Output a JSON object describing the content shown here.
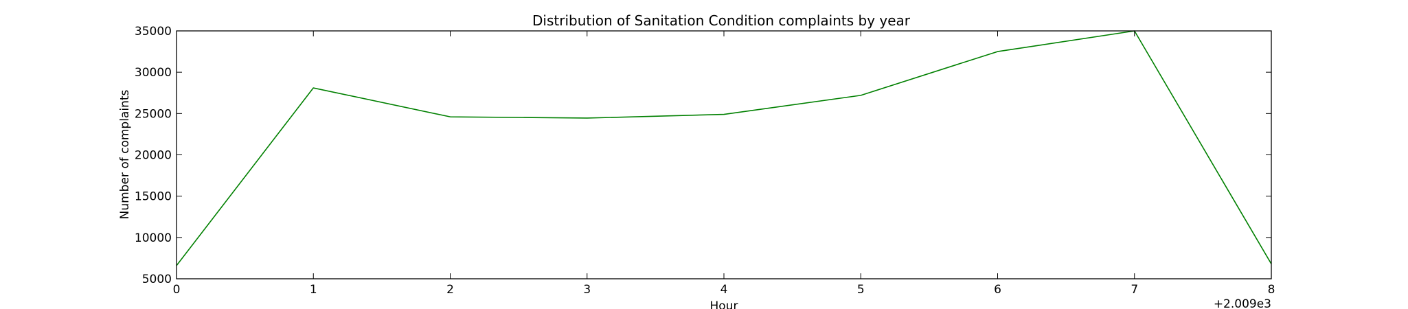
{
  "chart_data": {
    "type": "line",
    "title": "Distribution of  Sanitation Condition complaints by year",
    "xlabel": "Hour",
    "ylabel": "Number of complaints",
    "x_offset_label": "+2.009e3",
    "xlim": [
      0,
      8
    ],
    "ylim": [
      5000,
      35000
    ],
    "x_ticks": [
      0,
      1,
      2,
      3,
      4,
      5,
      6,
      7,
      8
    ],
    "x_tick_labels": [
      "0",
      "1",
      "2",
      "3",
      "4",
      "5",
      "6",
      "7",
      "8"
    ],
    "y_ticks": [
      5000,
      10000,
      15000,
      20000,
      25000,
      30000,
      35000
    ],
    "y_tick_labels": [
      "5000",
      "10000",
      "15000",
      "20000",
      "25000",
      "30000",
      "35000"
    ],
    "grid": false,
    "legend": "none",
    "series": [
      {
        "color": "#008000",
        "x": [
          0,
          1,
          2,
          3,
          4,
          5,
          6,
          7,
          8
        ],
        "values": [
          6600,
          28100,
          24600,
          24450,
          24900,
          27200,
          32500,
          35000,
          6800
        ]
      }
    ]
  }
}
